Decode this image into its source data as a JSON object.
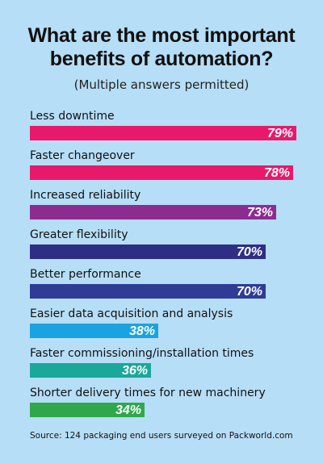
{
  "chart_data": {
    "type": "bar",
    "orientation": "horizontal",
    "title": "What are the most important benefits of automation?",
    "subtitle": "(Multiple answers permitted)",
    "source": "Source: 124 packaging end users surveyed on Packworld.com",
    "xlim": [
      0,
      79
    ],
    "grid": false,
    "categories": [
      "Less downtime",
      "Faster changeover",
      "Increased reliability",
      "Greater flexibility",
      "Better performance",
      "Easier data acquisition and analysis",
      "Faster commissioning/installation times",
      "Shorter delivery times for new machinery"
    ],
    "values": [
      79,
      78,
      73,
      70,
      70,
      38,
      36,
      34
    ],
    "value_labels": [
      "79%",
      "78%",
      "73%",
      "70%",
      "70%",
      "38%",
      "36%",
      "34%"
    ],
    "colors": [
      "#e8196b",
      "#e8196b",
      "#8c2c91",
      "#2e2f84",
      "#2e3c96",
      "#1ba3e0",
      "#1aa89a",
      "#2fa84c"
    ]
  }
}
